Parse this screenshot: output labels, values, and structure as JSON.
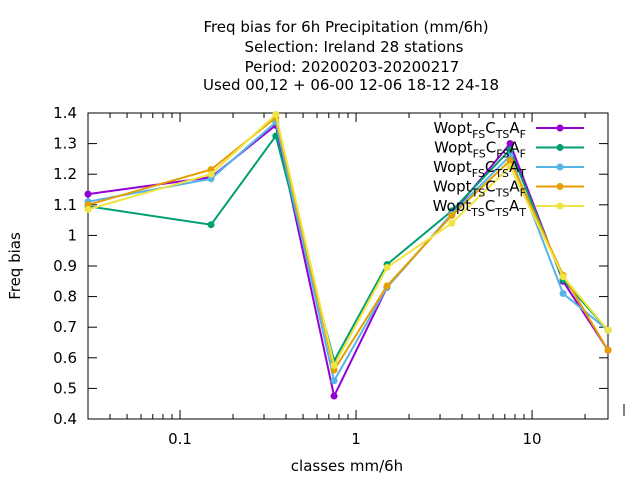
{
  "chart_data": {
    "type": "line",
    "title_lines": [
      "Freq bias  for 6h Precipitation (mm/6h)",
      "Selection: Ireland     28 stations",
      "Period: 20200203-20200217",
      "Used  00,12  + 06-00 12-06 18-12 24-18"
    ],
    "xlabel": "classes mm/6h",
    "ylabel": "Freq bias",
    "x_scale": "log",
    "xlim": [
      0.03,
      27
    ],
    "ylim": [
      0.4,
      1.4
    ],
    "x_ticks": [
      0.1,
      1,
      10
    ],
    "x_tick_labels": [
      "0.1",
      "1",
      "10"
    ],
    "y_ticks": [
      0.4,
      0.5,
      0.6,
      0.7,
      0.8,
      0.9,
      1.0,
      1.1,
      1.2,
      1.3,
      1.4
    ],
    "y_tick_labels": [
      "0.4",
      "0.5",
      "0.6",
      "0.7",
      "0.8",
      "0.9",
      "1",
      "1.1",
      "1.2",
      "1.3",
      "1.4"
    ],
    "grid": false,
    "legend_position": "top-right",
    "x": [
      0.03,
      0.15,
      0.35,
      0.75,
      1.5,
      3.5,
      7.5,
      15,
      27
    ],
    "series": [
      {
        "name": "Wopt FS C TS A F",
        "label": {
          "base": "Wopt",
          "s1": "FS",
          "m": "C",
          "s2": "TS",
          "a": "A",
          "s3": "F"
        },
        "color": "#9400d3",
        "values": [
          1.135,
          1.19,
          1.36,
          0.475,
          0.83,
          1.07,
          1.3,
          0.85,
          0.625
        ]
      },
      {
        "name": "Wopt FS C FS A F",
        "label": {
          "base": "Wopt",
          "s1": "FS",
          "m": "C",
          "s2": "FS",
          "a": "A",
          "s3": "F"
        },
        "color": "#009e73",
        "values": [
          1.095,
          1.035,
          1.325,
          0.59,
          0.905,
          1.08,
          1.28,
          0.855,
          0.69
        ]
      },
      {
        "name": "Wopt FS C TS A T",
        "label": {
          "base": "Wopt",
          "s1": "FS",
          "m": "C",
          "s2": "TS",
          "a": "A",
          "s3": "T"
        },
        "color": "#56b4e9",
        "values": [
          1.11,
          1.185,
          1.37,
          0.525,
          0.83,
          1.07,
          1.26,
          0.81,
          0.69
        ]
      },
      {
        "name": "Wopt TS C TS A F",
        "label": {
          "base": "Wopt",
          "s1": "TS",
          "m": "C",
          "s2": "TS",
          "a": "A",
          "s3": "F"
        },
        "color": "#e69f00",
        "values": [
          1.1,
          1.215,
          1.385,
          0.56,
          0.835,
          1.065,
          1.245,
          0.87,
          0.625
        ]
      },
      {
        "name": "Wopt TS C TS A T",
        "label": {
          "base": "Wopt",
          "s1": "TS",
          "m": "C",
          "s2": "TS",
          "a": "A",
          "s3": "T"
        },
        "color": "#f0e442",
        "values": [
          1.085,
          1.2,
          1.395,
          0.575,
          0.895,
          1.04,
          1.225,
          0.865,
          0.69
        ]
      }
    ]
  }
}
